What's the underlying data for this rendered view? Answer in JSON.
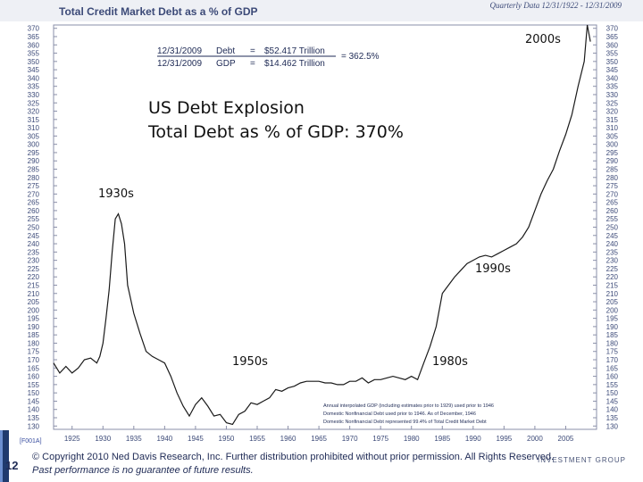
{
  "header": {
    "title": "Total Credit Market Debt as a % of GDP",
    "range": "Quarterly Data 12/31/1922 - 12/31/2009"
  },
  "chart_data": {
    "type": "line",
    "title": "Total Credit Market Debt as a % of GDP",
    "xlabel": "",
    "ylabel": "",
    "xlim": [
      1922,
      2010
    ],
    "ylim": [
      128,
      372
    ],
    "y_ticks": [
      130,
      135,
      140,
      145,
      150,
      155,
      160,
      165,
      170,
      175,
      180,
      185,
      190,
      195,
      200,
      205,
      210,
      215,
      220,
      225,
      230,
      235,
      240,
      245,
      250,
      255,
      260,
      265,
      270,
      275,
      280,
      285,
      290,
      295,
      300,
      305,
      310,
      315,
      320,
      325,
      330,
      335,
      340,
      345,
      350,
      355,
      360,
      365,
      370
    ],
    "x_ticks": [
      1925,
      1930,
      1935,
      1940,
      1945,
      1950,
      1955,
      1960,
      1965,
      1970,
      1975,
      1980,
      1985,
      1990,
      1995,
      2000,
      2005
    ],
    "grid": false,
    "legend": "none",
    "series": [
      {
        "color": "#1a1a1a",
        "x": [
          1922,
          1923,
          1924,
          1925,
          1926,
          1927,
          1928,
          1929,
          1929.5,
          1930,
          1930.5,
          1931,
          1931.5,
          1932,
          1932.5,
          1933,
          1933.5,
          1934,
          1935,
          1936,
          1937,
          1938,
          1939,
          1940,
          1941,
          1942,
          1943,
          1944,
          1945,
          1946,
          1947,
          1948,
          1949,
          1950,
          1951,
          1952,
          1953,
          1954,
          1955,
          1956,
          1957,
          1958,
          1959,
          1960,
          1961,
          1962,
          1963,
          1964,
          1965,
          1966,
          1967,
          1968,
          1969,
          1970,
          1971,
          1972,
          1973,
          1974,
          1975,
          1976,
          1977,
          1978,
          1979,
          1980,
          1981,
          1982,
          1983,
          1984,
          1985,
          1986,
          1987,
          1988,
          1989,
          1990,
          1991,
          1992,
          1993,
          1994,
          1995,
          1996,
          1997,
          1998,
          1999,
          2000,
          2001,
          2002,
          2003,
          2004,
          2005,
          2006,
          2007,
          2008,
          2008.5,
          2009
        ],
        "values": [
          168,
          162,
          166,
          162,
          165,
          170,
          171,
          168,
          172,
          180,
          195,
          212,
          235,
          255,
          258,
          252,
          240,
          215,
          198,
          186,
          175,
          172,
          170,
          168,
          160,
          150,
          142,
          136,
          143,
          147,
          142,
          136,
          137,
          132,
          131,
          137,
          139,
          144,
          143,
          145,
          147,
          152,
          151,
          153,
          154,
          156,
          157,
          157,
          157,
          156,
          156,
          155,
          155,
          157,
          157,
          159,
          156,
          158,
          158,
          159,
          160,
          159,
          158,
          160,
          158,
          168,
          178,
          190,
          210,
          215,
          220,
          224,
          228,
          230,
          232,
          233,
          232,
          234,
          236,
          238,
          240,
          244,
          250,
          260,
          270,
          278,
          285,
          296,
          306,
          318,
          335,
          350,
          372,
          362
        ]
      }
    ],
    "annotations": {
      "legend_box": {
        "debt_date": "12/31/2009",
        "debt_label": "Debt",
        "debt_eq": "=",
        "debt_value": "$52.417 Trillion",
        "gdp_date": "12/31/2009",
        "gdp_label": "GDP",
        "gdp_eq": "=",
        "gdp_value": "$14.462 Trillion",
        "ratio": "= 362.5%"
      },
      "notes": [
        "Annual interpolated GDP (including estimates prior to 1929) used prior to 1946",
        "Domestic Nonfinancial Debt used prior to 1946. As of December, 1946",
        "Domestic Nonfinancial Debt represented 99.4% of Total Credit Market Debt"
      ]
    }
  },
  "overlay": {
    "heading_line1": "US Debt Explosion",
    "heading_line2": "Total Debt as % of GDP: 370%",
    "label_2000s": "2000s",
    "label_1930s": "1930s",
    "label_1990s": "1990s",
    "label_1950s": "1950s",
    "label_1980s": "1980s"
  },
  "footer": {
    "page_number": "12",
    "copyright": "© Copyright 2010 Ned Davis Research, Inc.  Further distribution prohibited without prior permission.  All Rights Reserved.",
    "disclaimer": "Past performance is no guarantee of future results.",
    "brand": "INVESTMENT GROUP",
    "ref": "[F001A]"
  }
}
